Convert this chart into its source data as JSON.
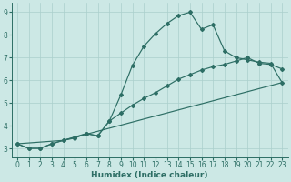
{
  "xlabel": "Humidex (Indice chaleur)",
  "bg_color": "#cce8e5",
  "grid_color": "#aacfcc",
  "line_color": "#2d6e65",
  "line1_x": [
    0,
    1,
    2,
    3,
    4,
    5,
    6,
    7,
    8,
    9,
    10,
    11,
    12,
    13,
    14,
    15,
    16,
    17,
    18,
    19,
    20,
    21,
    22,
    23
  ],
  "line1_y": [
    3.2,
    3.0,
    3.0,
    3.2,
    3.35,
    3.45,
    3.65,
    3.55,
    4.2,
    5.35,
    6.65,
    7.5,
    8.05,
    8.5,
    8.85,
    9.0,
    8.25,
    8.45,
    7.3,
    7.0,
    6.9,
    6.8,
    6.75,
    5.9
  ],
  "line2_x": [
    0,
    1,
    2,
    3,
    4,
    5,
    6,
    7,
    8,
    9,
    10,
    11,
    12,
    13,
    14,
    15,
    16,
    17,
    18,
    19,
    20,
    21,
    22,
    23
  ],
  "line2_y": [
    3.2,
    3.0,
    3.0,
    3.2,
    3.35,
    3.5,
    3.65,
    3.55,
    4.2,
    4.55,
    4.9,
    5.2,
    5.45,
    5.75,
    6.05,
    6.25,
    6.45,
    6.6,
    6.7,
    6.85,
    7.0,
    6.75,
    6.7,
    6.5
  ],
  "line3_x": [
    0,
    4,
    23
  ],
  "line3_y": [
    3.2,
    3.35,
    5.9
  ],
  "xlim": [
    -0.5,
    23.5
  ],
  "ylim": [
    2.6,
    9.4
  ],
  "xticks": [
    0,
    1,
    2,
    3,
    4,
    5,
    6,
    7,
    8,
    9,
    10,
    11,
    12,
    13,
    14,
    15,
    16,
    17,
    18,
    19,
    20,
    21,
    22,
    23
  ],
  "yticks": [
    3,
    4,
    5,
    6,
    7,
    8,
    9
  ],
  "tick_fontsize": 5.5,
  "xlabel_fontsize": 6.5,
  "marker": "D",
  "markersize": 2.0,
  "linewidth": 0.85
}
